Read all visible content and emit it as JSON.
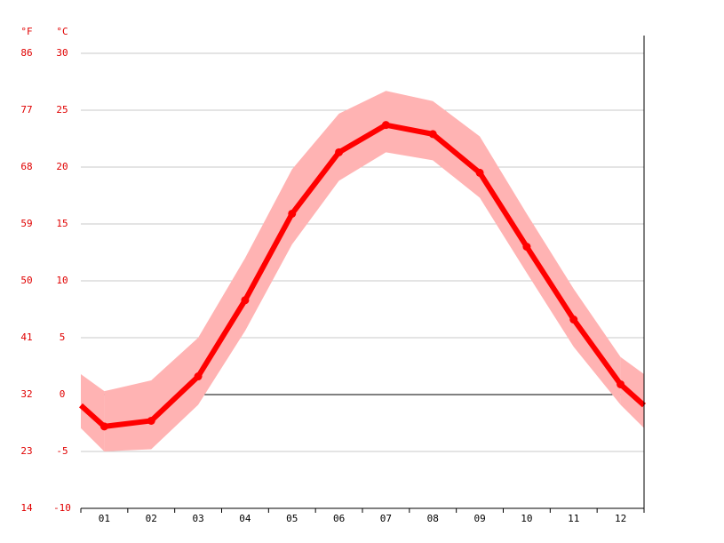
{
  "chart_data": {
    "type": "climate",
    "y_label": "°C",
    "y2_label": "°F",
    "categories": [
      "01",
      "02",
      "03",
      "04",
      "05",
      "06",
      "07",
      "08",
      "09",
      "10",
      "11",
      "12"
    ],
    "series": [
      {
        "color": "#ff0000",
        "values": [
          -2.8,
          -2.3,
          1.6,
          8.3,
          15.9,
          21.3,
          23.7,
          22.9,
          19.5,
          13.0,
          6.6,
          0.9
        ]
      }
    ],
    "band": {
      "color": "#ffb3b3",
      "upper": [
        0.3,
        1.25,
        5.0,
        12.0,
        19.8,
        24.7,
        26.7,
        25.8,
        22.7,
        15.9,
        9.3,
        3.3
      ],
      "lower": [
        -5.0,
        -4.8,
        -0.9,
        5.6,
        13.2,
        18.8,
        21.3,
        20.6,
        17.3,
        10.7,
        4.2,
        -0.9
      ]
    },
    "ylim": [
      -10,
      30
    ],
    "yticks": [
      -10,
      -5,
      0,
      5,
      10,
      15,
      20,
      25,
      30
    ],
    "y2lim": [
      14,
      86
    ],
    "y2ticks": [
      14,
      23,
      32,
      41,
      50,
      59,
      68,
      77,
      86
    ],
    "grid": true
  }
}
